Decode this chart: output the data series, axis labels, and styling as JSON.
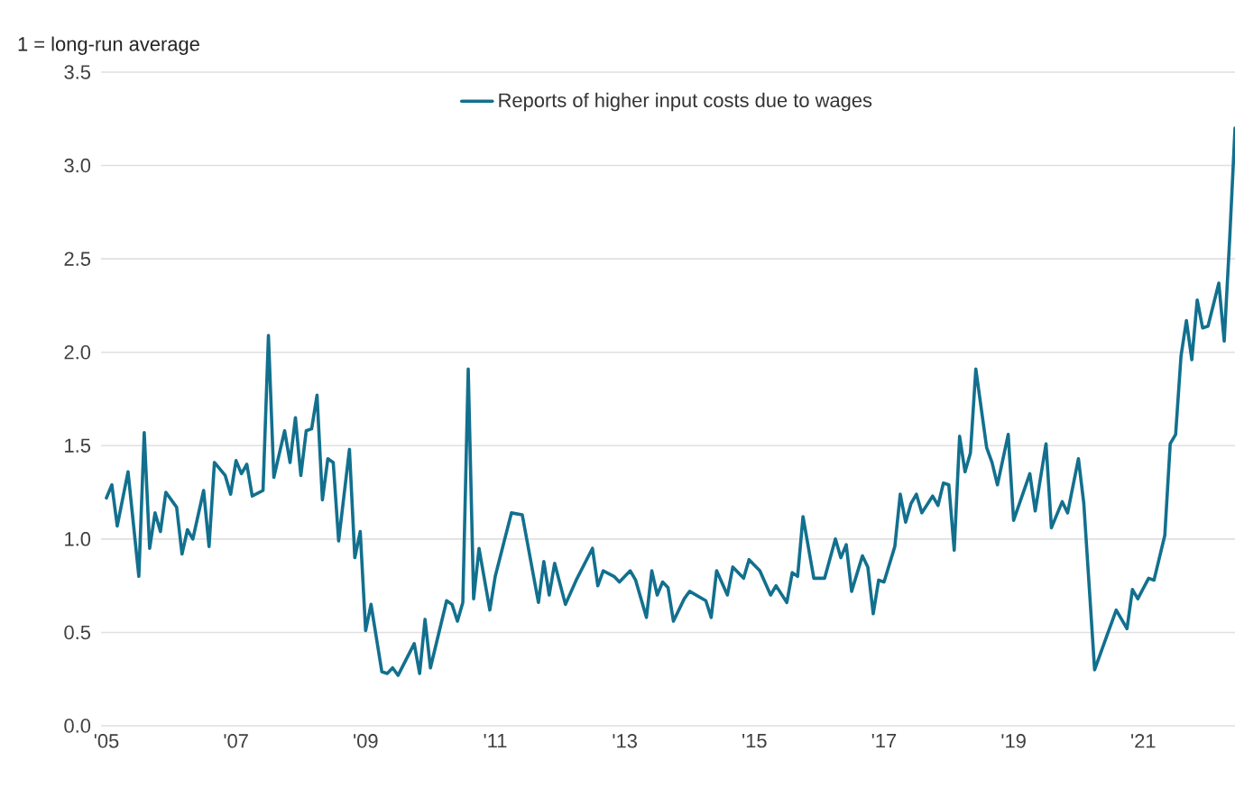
{
  "chart_data": {
    "type": "line",
    "ylabel": "1 = long-run average",
    "x": [
      "2005-01",
      "2005-02",
      "2005-03",
      "2005-05",
      "2005-07",
      "2005-08",
      "2005-09",
      "2005-10",
      "2005-11",
      "2005-12",
      "2006-02",
      "2006-03",
      "2006-04",
      "2006-05",
      "2006-07",
      "2006-08",
      "2006-09",
      "2006-11",
      "2006-12",
      "2007-01",
      "2007-02",
      "2007-03",
      "2007-04",
      "2007-06",
      "2007-07",
      "2007-08",
      "2007-10",
      "2007-11",
      "2007-12",
      "2008-01",
      "2008-02",
      "2008-03",
      "2008-04",
      "2008-05",
      "2008-06",
      "2008-07",
      "2008-08",
      "2008-10",
      "2008-11",
      "2008-12",
      "2009-01",
      "2009-02",
      "2009-04",
      "2009-05",
      "2009-06",
      "2009-07",
      "2009-10",
      "2009-11",
      "2009-12",
      "2010-01",
      "2010-04",
      "2010-05",
      "2010-06",
      "2010-07",
      "2010-08",
      "2010-09",
      "2010-10",
      "2010-12",
      "2011-01",
      "2011-04",
      "2011-06",
      "2011-09",
      "2011-10",
      "2011-11",
      "2011-12",
      "2012-02",
      "2012-04",
      "2012-07",
      "2012-08",
      "2012-09",
      "2012-11",
      "2012-12",
      "2013-02",
      "2013-03",
      "2013-05",
      "2013-06",
      "2013-07",
      "2013-08",
      "2013-09",
      "2013-10",
      "2013-12",
      "2014-01",
      "2014-04",
      "2014-05",
      "2014-06",
      "2014-08",
      "2014-09",
      "2014-11",
      "2014-12",
      "2015-02",
      "2015-04",
      "2015-05",
      "2015-07",
      "2015-08",
      "2015-09",
      "2015-10",
      "2015-12",
      "2016-02",
      "2016-04",
      "2016-05",
      "2016-06",
      "2016-07",
      "2016-09",
      "2016-10",
      "2016-11",
      "2016-12",
      "2017-01",
      "2017-03",
      "2017-04",
      "2017-05",
      "2017-06",
      "2017-07",
      "2017-08",
      "2017-10",
      "2017-11",
      "2017-12",
      "2018-01",
      "2018-02",
      "2018-03",
      "2018-04",
      "2018-05",
      "2018-06",
      "2018-08",
      "2018-09",
      "2018-10",
      "2018-12",
      "2019-01",
      "2019-04",
      "2019-05",
      "2019-07",
      "2019-08",
      "2019-10",
      "2019-11",
      "2020-01",
      "2020-02",
      "2020-04",
      "2020-06",
      "2020-08",
      "2020-10",
      "2020-11",
      "2020-12",
      "2021-02",
      "2021-03",
      "2021-05",
      "2021-06",
      "2021-07",
      "2021-08",
      "2021-09",
      "2021-10",
      "2021-11",
      "2021-12",
      "2022-01",
      "2022-03",
      "2022-04",
      "2022-05",
      "2022-06"
    ],
    "series": [
      {
        "name": "Reports of higher input costs due to wages",
        "color": "#12708e",
        "values": [
          1.22,
          1.29,
          1.07,
          1.36,
          0.8,
          1.57,
          0.95,
          1.14,
          1.04,
          1.25,
          1.17,
          0.92,
          1.05,
          1.0,
          1.26,
          0.96,
          1.41,
          1.34,
          1.24,
          1.42,
          1.35,
          1.4,
          1.23,
          1.26,
          2.09,
          1.33,
          1.58,
          1.41,
          1.65,
          1.34,
          1.58,
          1.59,
          1.77,
          1.21,
          1.43,
          1.41,
          0.99,
          1.48,
          0.9,
          1.04,
          0.51,
          0.65,
          0.29,
          0.28,
          0.31,
          0.27,
          0.44,
          0.28,
          0.57,
          0.31,
          0.67,
          0.65,
          0.56,
          0.66,
          1.91,
          0.68,
          0.95,
          0.62,
          0.8,
          1.14,
          1.13,
          0.66,
          0.88,
          0.7,
          0.87,
          0.65,
          0.78,
          0.95,
          0.75,
          0.83,
          0.8,
          0.77,
          0.83,
          0.78,
          0.58,
          0.83,
          0.7,
          0.77,
          0.74,
          0.56,
          0.68,
          0.72,
          0.67,
          0.58,
          0.83,
          0.7,
          0.85,
          0.79,
          0.89,
          0.83,
          0.7,
          0.75,
          0.66,
          0.82,
          0.8,
          1.12,
          0.79,
          0.79,
          1.0,
          0.9,
          0.97,
          0.72,
          0.91,
          0.85,
          0.6,
          0.78,
          0.77,
          0.96,
          1.24,
          1.09,
          1.19,
          1.24,
          1.14,
          1.23,
          1.18,
          1.3,
          1.29,
          0.94,
          1.55,
          1.36,
          1.46,
          1.91,
          1.49,
          1.41,
          1.29,
          1.56,
          1.1,
          1.35,
          1.15,
          1.51,
          1.06,
          1.2,
          1.14,
          1.43,
          1.19,
          0.3,
          0.46,
          0.62,
          0.52,
          0.73,
          0.68,
          0.79,
          0.78,
          1.02,
          1.51,
          1.56,
          1.98,
          2.17,
          1.96,
          2.28,
          2.13,
          2.14,
          2.37,
          2.06,
          2.6,
          3.2
        ]
      }
    ],
    "xlim": [
      "2004-12",
      "2022-06"
    ],
    "xticks": [
      {
        "value": "2005-01",
        "label": "'05"
      },
      {
        "value": "2007-01",
        "label": "'07"
      },
      {
        "value": "2009-01",
        "label": "'09"
      },
      {
        "value": "2011-01",
        "label": "'11"
      },
      {
        "value": "2013-01",
        "label": "'13"
      },
      {
        "value": "2015-01",
        "label": "'15"
      },
      {
        "value": "2017-01",
        "label": "'17"
      },
      {
        "value": "2019-01",
        "label": "'19"
      },
      {
        "value": "2021-01",
        "label": "'21"
      }
    ],
    "ylim": [
      0,
      3.5
    ],
    "yticks": [
      {
        "value": 0,
        "label": "0.0"
      },
      {
        "value": 0.5,
        "label": "0.5"
      },
      {
        "value": 1,
        "label": "1.0"
      },
      {
        "value": 1.5,
        "label": "1.5"
      },
      {
        "value": 2,
        "label": "2.0"
      },
      {
        "value": 2.5,
        "label": "2.5"
      },
      {
        "value": 3,
        "label": "3.0"
      },
      {
        "value": 3.5,
        "label": "3.5"
      }
    ],
    "grid": "y",
    "legend": "top"
  }
}
